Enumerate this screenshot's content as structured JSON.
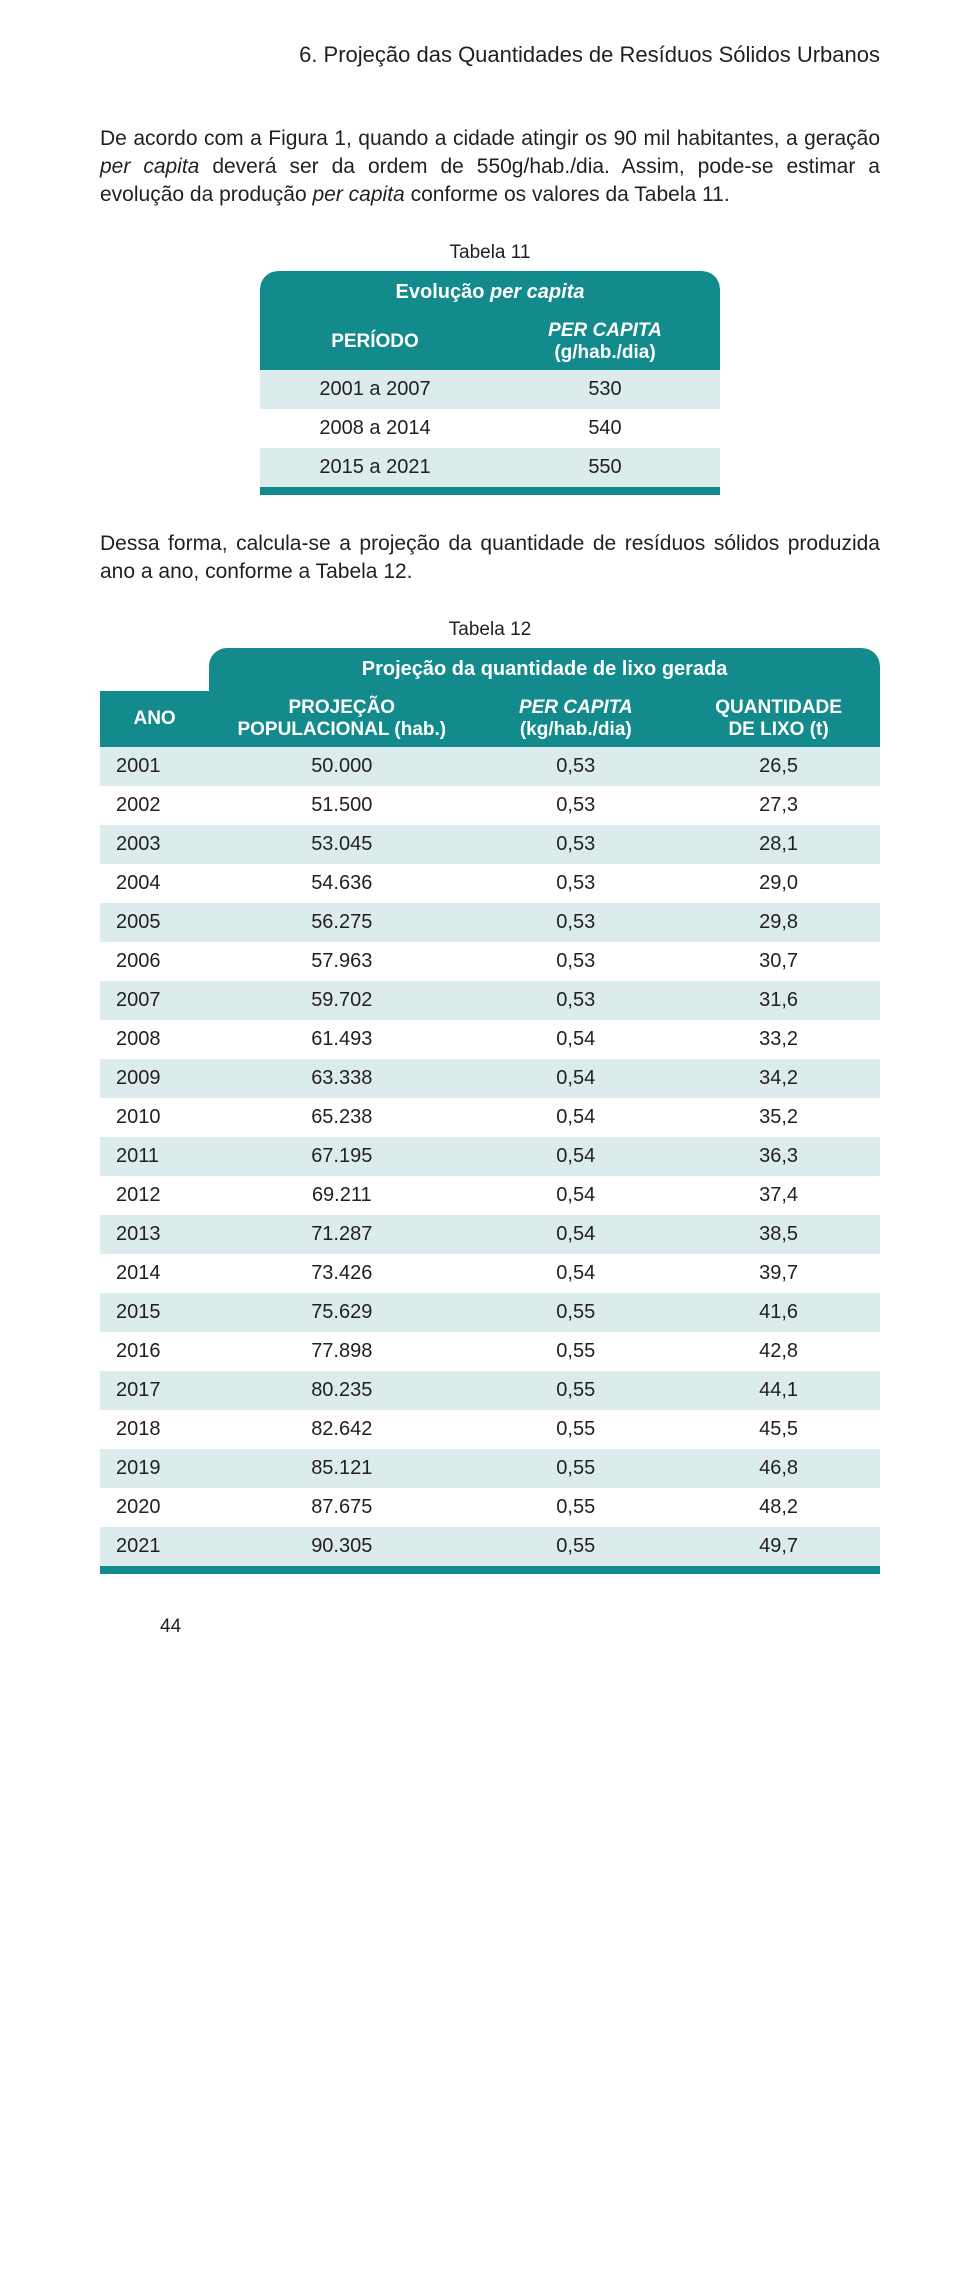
{
  "colors": {
    "teal": "#138a8c",
    "stripe": "#dceced",
    "text": "#231f20",
    "bg": "#ffffff"
  },
  "section_title": "6. Projeção das Quantidades de Resíduos Sólidos Urbanos",
  "para1_a": "De acordo com a Figura 1, quando a cidade atingir os 90 mil habitantes, a geração ",
  "para1_b": "per capita",
  "para1_c": " deverá ser da ordem de 550g/hab./dia. Assim, pode-se estimar a evolução da produção ",
  "para1_d": "per capita",
  "para1_e": " conforme os valores da Tabela 11.",
  "table11": {
    "caption": "Tabela 11",
    "title_a": "Evolução ",
    "title_b": "per capita",
    "col1_header": "PERÍODO",
    "col2_header_a": "PER CAPITA",
    "col2_header_b": "(g/hab./dia)",
    "rows": [
      {
        "periodo": "2001 a 2007",
        "valor": "530"
      },
      {
        "periodo": "2008 a 2014",
        "valor": "540"
      },
      {
        "periodo": "2015 a 2021",
        "valor": "550"
      }
    ]
  },
  "para2": "Dessa forma, calcula-se a projeção da quantidade de resíduos sólidos produzida ano a ano, conforme a Tabela 12.",
  "table12": {
    "caption": "Tabela 12",
    "title": "Projeção da quantidade de lixo gerada",
    "headers": {
      "ano": "ANO",
      "proj_a": "PROJEÇÃO",
      "proj_b": "POPULACIONAL (hab.)",
      "pc_a": "PER CAPITA",
      "pc_b": "(kg/hab./dia)",
      "qt_a": "QUANTIDADE",
      "qt_b": "DE LIXO (t)"
    },
    "rows": [
      {
        "ano": "2001",
        "pop": "50.000",
        "pc": "0,53",
        "qt": "26,5"
      },
      {
        "ano": "2002",
        "pop": "51.500",
        "pc": "0,53",
        "qt": "27,3"
      },
      {
        "ano": "2003",
        "pop": "53.045",
        "pc": "0,53",
        "qt": "28,1"
      },
      {
        "ano": "2004",
        "pop": "54.636",
        "pc": "0,53",
        "qt": "29,0"
      },
      {
        "ano": "2005",
        "pop": "56.275",
        "pc": "0,53",
        "qt": "29,8"
      },
      {
        "ano": "2006",
        "pop": "57.963",
        "pc": "0,53",
        "qt": "30,7"
      },
      {
        "ano": "2007",
        "pop": "59.702",
        "pc": "0,53",
        "qt": "31,6"
      },
      {
        "ano": "2008",
        "pop": "61.493",
        "pc": "0,54",
        "qt": "33,2"
      },
      {
        "ano": "2009",
        "pop": "63.338",
        "pc": "0,54",
        "qt": "34,2"
      },
      {
        "ano": "2010",
        "pop": "65.238",
        "pc": "0,54",
        "qt": "35,2"
      },
      {
        "ano": "2011",
        "pop": "67.195",
        "pc": "0,54",
        "qt": "36,3"
      },
      {
        "ano": "2012",
        "pop": "69.211",
        "pc": "0,54",
        "qt": "37,4"
      },
      {
        "ano": "2013",
        "pop": "71.287",
        "pc": "0,54",
        "qt": "38,5"
      },
      {
        "ano": "2014",
        "pop": "73.426",
        "pc": "0,54",
        "qt": "39,7"
      },
      {
        "ano": "2015",
        "pop": "75.629",
        "pc": "0,55",
        "qt": "41,6"
      },
      {
        "ano": "2016",
        "pop": "77.898",
        "pc": "0,55",
        "qt": "42,8"
      },
      {
        "ano": "2017",
        "pop": "80.235",
        "pc": "0,55",
        "qt": "44,1"
      },
      {
        "ano": "2018",
        "pop": "82.642",
        "pc": "0,55",
        "qt": "45,5"
      },
      {
        "ano": "2019",
        "pop": "85.121",
        "pc": "0,55",
        "qt": "46,8"
      },
      {
        "ano": "2020",
        "pop": "87.675",
        "pc": "0,55",
        "qt": "48,2"
      },
      {
        "ano": "2021",
        "pop": "90.305",
        "pc": "0,55",
        "qt": "49,7"
      }
    ]
  },
  "page_number": "44"
}
